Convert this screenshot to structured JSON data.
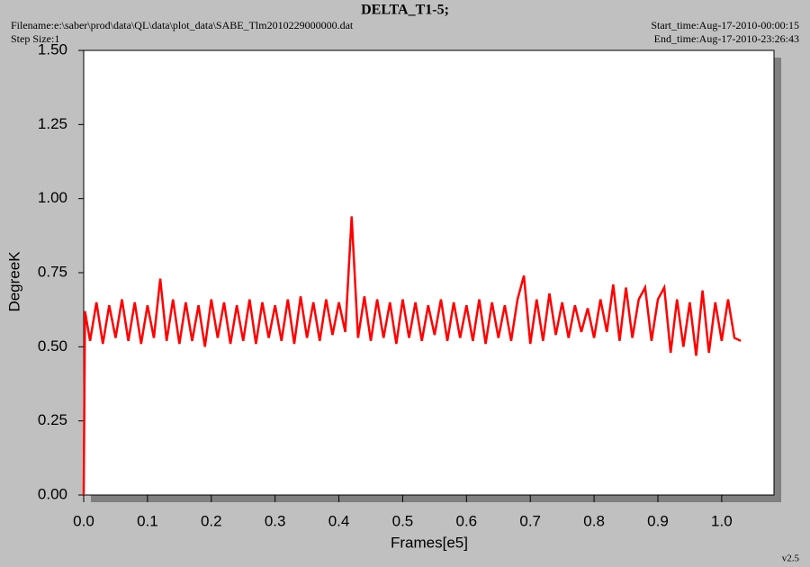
{
  "chart_data": {
    "type": "line",
    "title": "DELTA_T1-5;",
    "filename": "Filename:e:\\saber\\prod\\data\\QL\\data\\plot_data\\SABE_Tlm2010229000000.dat",
    "step_size": "Step Size:1",
    "start_time": "Start_time:Aug-17-2010-00:00:15",
    "end_time": "End_time:Aug-17-2010-23:26:43",
    "version": "v2.5",
    "x_label": "Frames[e5]",
    "y_label": "DegreeK",
    "xlim": [
      0,
      1.082
    ],
    "ylim": [
      0,
      1.5
    ],
    "xticks": [
      {
        "value": 0,
        "label": "0.0"
      },
      0.1,
      0.2,
      0.3,
      0.4,
      0.5,
      0.6,
      0.7,
      0.8,
      0.9,
      {
        "value": 1,
        "label": "1.0"
      }
    ],
    "yticks": [
      {
        "value": 0,
        "label": "0.00"
      },
      0.25,
      {
        "value": 0.5,
        "label": "0.50"
      },
      0.75,
      {
        "value": 1,
        "label": "1.00"
      },
      1.25,
      {
        "value": 1.5,
        "label": "1.50"
      }
    ],
    "x": [
      0,
      0.002,
      0.01,
      0.02,
      0.03,
      0.04,
      0.05,
      0.06,
      0.07,
      0.08,
      0.09,
      0.1,
      0.11,
      0.12,
      0.13,
      0.14,
      0.15,
      0.16,
      0.17,
      0.18,
      0.19,
      0.2,
      0.21,
      0.22,
      0.23,
      0.24,
      0.25,
      0.26,
      0.27,
      0.28,
      0.29,
      0.3,
      0.31,
      0.32,
      0.33,
      0.34,
      0.35,
      0.36,
      0.37,
      0.38,
      0.39,
      0.4,
      0.41,
      0.42,
      0.43,
      0.44,
      0.45,
      0.46,
      0.47,
      0.48,
      0.49,
      0.5,
      0.51,
      0.52,
      0.53,
      0.54,
      0.55,
      0.56,
      0.57,
      0.58,
      0.59,
      0.6,
      0.61,
      0.62,
      0.63,
      0.64,
      0.65,
      0.66,
      0.67,
      0.68,
      0.69,
      0.7,
      0.71,
      0.72,
      0.73,
      0.74,
      0.75,
      0.76,
      0.77,
      0.78,
      0.79,
      0.8,
      0.81,
      0.82,
      0.83,
      0.84,
      0.85,
      0.86,
      0.87,
      0.88,
      0.89,
      0.9,
      0.91,
      0.92,
      0.93,
      0.94,
      0.95,
      0.96,
      0.97,
      0.98,
      0.99,
      1,
      1.01,
      1.02,
      1.03
    ],
    "series": [
      {
        "name": "DELTA_T1-5",
        "color": "#ff0000",
        "values": [
          0,
          0.62,
          0.52,
          0.65,
          0.51,
          0.64,
          0.53,
          0.66,
          0.52,
          0.65,
          0.51,
          0.64,
          0.53,
          0.73,
          0.52,
          0.66,
          0.51,
          0.65,
          0.52,
          0.64,
          0.5,
          0.66,
          0.53,
          0.65,
          0.51,
          0.64,
          0.52,
          0.66,
          0.51,
          0.65,
          0.53,
          0.64,
          0.52,
          0.66,
          0.51,
          0.67,
          0.53,
          0.65,
          0.52,
          0.66,
          0.54,
          0.65,
          0.55,
          0.94,
          0.53,
          0.67,
          0.52,
          0.66,
          0.53,
          0.65,
          0.51,
          0.66,
          0.53,
          0.65,
          0.52,
          0.64,
          0.54,
          0.66,
          0.52,
          0.65,
          0.53,
          0.64,
          0.52,
          0.66,
          0.51,
          0.65,
          0.53,
          0.64,
          0.52,
          0.66,
          0.74,
          0.51,
          0.66,
          0.52,
          0.68,
          0.54,
          0.65,
          0.53,
          0.64,
          0.55,
          0.63,
          0.53,
          0.66,
          0.55,
          0.71,
          0.52,
          0.7,
          0.53,
          0.66,
          0.7,
          0.52,
          0.66,
          0.7,
          0.48,
          0.66,
          0.5,
          0.65,
          0.47,
          0.69,
          0.48,
          0.65,
          0.52,
          0.66,
          0.53,
          0.52
        ]
      }
    ]
  }
}
